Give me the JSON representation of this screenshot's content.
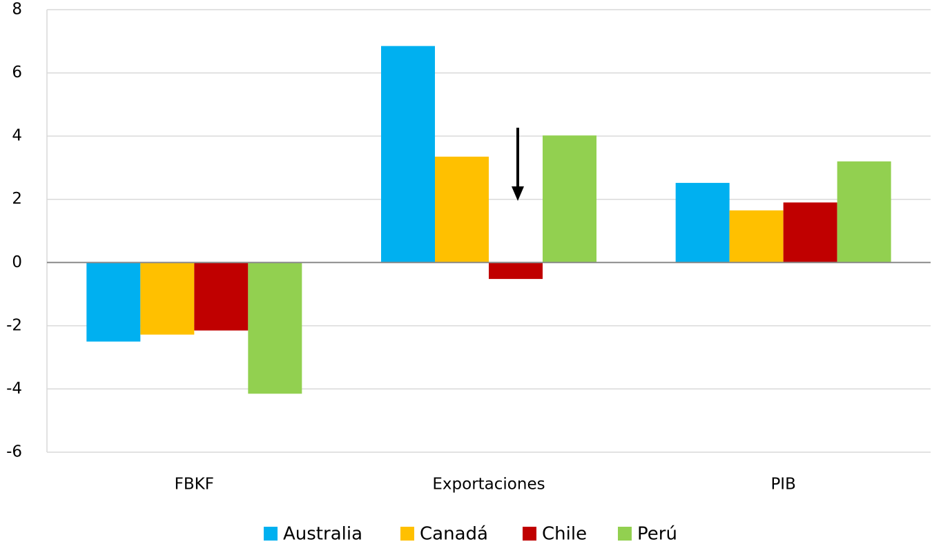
{
  "chart_data": {
    "type": "bar",
    "categories": [
      "FBKF",
      "Exportaciones",
      "PIB"
    ],
    "series": [
      {
        "name": "Australia",
        "color": "#00b0f0",
        "values": [
          -2.5,
          6.85,
          2.52
        ]
      },
      {
        "name": "Canadá",
        "color": "#ffc000",
        "values": [
          -2.28,
          3.35,
          1.65
        ]
      },
      {
        "name": "Chile",
        "color": "#c00000",
        "values": [
          -2.15,
          -0.52,
          1.9
        ]
      },
      {
        "name": "Perú",
        "color": "#92d050",
        "values": [
          -4.15,
          4.02,
          3.2
        ]
      }
    ],
    "ylim": [
      -6,
      8
    ],
    "yticks": [
      -6,
      -4,
      -2,
      0,
      2,
      4,
      6,
      8
    ],
    "grid": true,
    "legend": "bottom"
  }
}
